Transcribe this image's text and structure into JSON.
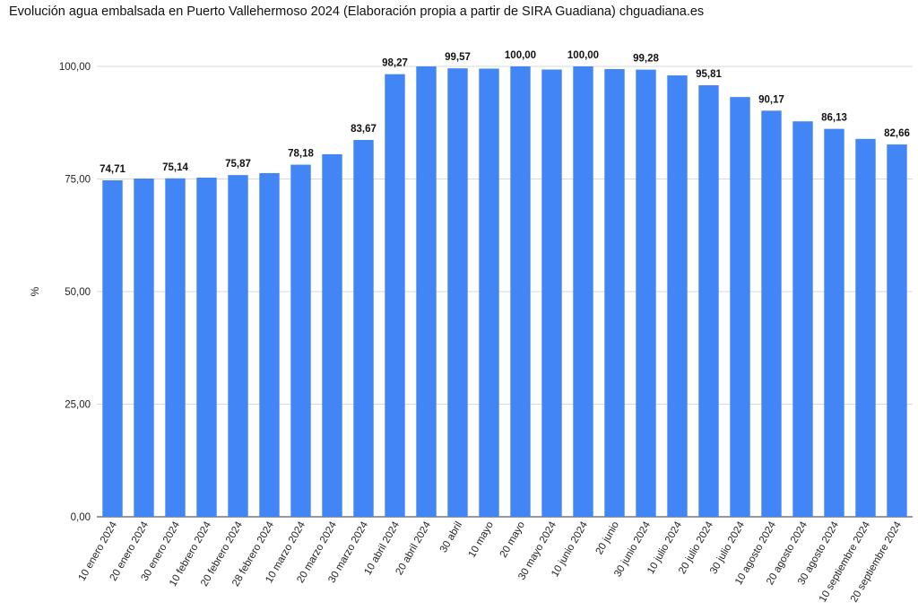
{
  "chart_data": {
    "type": "bar",
    "title": "Evolución agua embalsada en Puerto Vallehermoso 2024  (Elaboración propia a partir de SIRA Guadiana) chguadiana.es",
    "xlabel": "",
    "ylabel": "%",
    "ylim": [
      0,
      100
    ],
    "yticks": [
      "0,00",
      "25,00",
      "50,00",
      "75,00",
      "100,00"
    ],
    "ytick_values": [
      0,
      25,
      50,
      75,
      100
    ],
    "grid": true,
    "bar_color": "#4285f4",
    "categories": [
      "10 enero 2024",
      "20 enero 2024",
      "30 enero 2024",
      "10 febrero 2024",
      "20 febrero 2024",
      "28 febrero 2024",
      "10 marzo 2024",
      "20 marzo 2024",
      "30 marzo 2024",
      "10 abril 2024",
      "20 abril 2024",
      "30 abril",
      "10 mayo",
      "20 mayo",
      "30 mayo 2024",
      "10 junio 2024",
      "20 junio",
      "30 junio 2024",
      "10 julio 2024",
      "20 julio 2024",
      "30 julio 2024",
      "10 agosto 2024",
      "20 agosto 2024",
      "30 agosto 2024",
      "10 septiembre 2024",
      "20 septiembre 2024"
    ],
    "values": [
      74.71,
      75.1,
      75.14,
      75.3,
      75.87,
      76.3,
      78.18,
      80.5,
      83.67,
      98.27,
      100.0,
      99.57,
      99.5,
      100.0,
      99.3,
      100.0,
      99.4,
      99.28,
      98.0,
      95.81,
      93.2,
      90.17,
      87.8,
      86.13,
      83.9,
      82.66
    ],
    "data_labels": [
      "74,71",
      "",
      "75,14",
      "",
      "75,87",
      "",
      "78,18",
      "",
      "83,67",
      "98,27",
      "",
      "99,57",
      "",
      "100,00",
      "",
      "100,00",
      "",
      "99,28",
      "",
      "95,81",
      "",
      "90,17",
      "",
      "86,13",
      "",
      "82,66"
    ]
  }
}
